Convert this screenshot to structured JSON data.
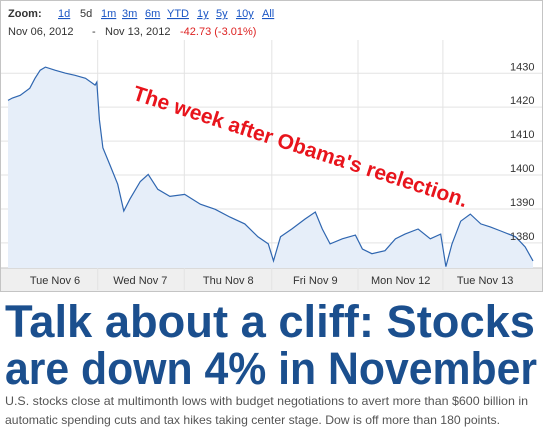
{
  "toolbar": {
    "zoom_label": "Zoom:",
    "ranges": [
      "1d",
      "5d",
      "1m",
      "3m",
      "6m",
      "YTD",
      "1y",
      "5y",
      "10y",
      "All"
    ],
    "active": 1
  },
  "date_range": {
    "start": "Nov 06, 2012",
    "separator": "-",
    "end": "Nov 13, 2012",
    "change": "-42.73 (-3.01%)"
  },
  "chart_data": {
    "type": "area",
    "color": "#2f66b0",
    "fill": "#e6eef9",
    "grid": true,
    "annotation": "The week after Obama's reelection.",
    "annotation_color": "#e8141c",
    "x": [
      0,
      0.05,
      0.14,
      0.25,
      0.31,
      0.37,
      0.43,
      0.54,
      0.66,
      0.77,
      0.89,
      1.0,
      1.02,
      1.05,
      1.09,
      1.17,
      1.26,
      1.33,
      1.4,
      1.52,
      1.61,
      1.72,
      1.86,
      2.03,
      2.21,
      2.38,
      2.55,
      2.72,
      2.87,
      2.99,
      3.05,
      3.13,
      3.26,
      3.41,
      3.53,
      3.61,
      3.7,
      3.84,
      3.99,
      4.07,
      4.18,
      4.33,
      4.45,
      4.56,
      4.71,
      4.85,
      4.97,
      5.03,
      5.1,
      5.2,
      5.31,
      5.43,
      5.54,
      5.66,
      5.83,
      5.94,
      6.03
    ],
    "values": [
      1422,
      1422.7,
      1423.5,
      1425.6,
      1428.5,
      1430.9,
      1431.8,
      1430.9,
      1430,
      1429.4,
      1428.5,
      1426.5,
      1427.4,
      1416.3,
      1408,
      1403,
      1397.3,
      1389.4,
      1392.9,
      1398.1,
      1400.2,
      1395.8,
      1393.7,
      1394.3,
      1391.4,
      1389.9,
      1387.6,
      1385.6,
      1381.8,
      1379.7,
      1374.7,
      1381.8,
      1384.1,
      1387,
      1389.1,
      1384.1,
      1379.7,
      1381.2,
      1382.3,
      1378.2,
      1376.8,
      1377.7,
      1381.2,
      1382.6,
      1384.1,
      1381.2,
      1382.6,
      1373,
      1379.7,
      1386.4,
      1388.5,
      1385.6,
      1384.7,
      1383.5,
      1381.8,
      1378.8,
      1374.7
    ],
    "xlim": [
      0,
      6.03
    ],
    "ylim": [
      1372.6,
      1439.8
    ],
    "xticks": [
      {
        "value": 0.54,
        "label": "Tue Nov 6"
      },
      {
        "value": 1.52,
        "label": "Wed Nov 7"
      },
      {
        "value": 2.53,
        "label": "Thu Nov 8"
      },
      {
        "value": 3.53,
        "label": "Fri Nov 9"
      },
      {
        "value": 4.51,
        "label": "Mon Nov 12"
      },
      {
        "value": 5.48,
        "label": "Tue Nov 13"
      }
    ],
    "yticks": [
      1380,
      1390,
      1400,
      1410,
      1420,
      1430
    ]
  },
  "article": {
    "headline": [
      "Talk about a cliff: Stocks",
      "are down 4% in November"
    ],
    "summary": [
      "U.S. stocks close at multimonth lows with budget negotiations to avert more than $600 billion in",
      "automatic spending cuts and tax hikes taking center stage. Dow is off more than 180 points."
    ]
  }
}
